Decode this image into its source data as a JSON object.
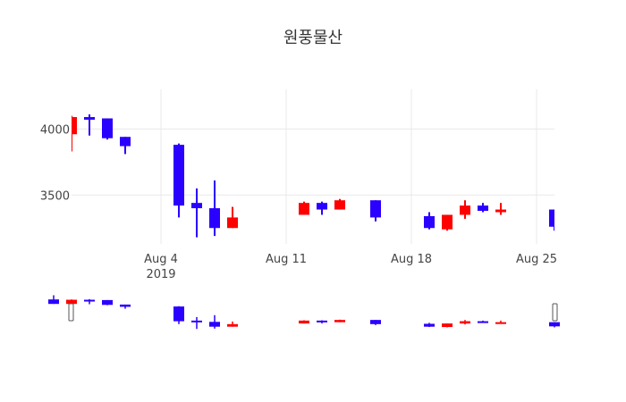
{
  "chart_data": {
    "type": "candlestick",
    "title": "원풍물산",
    "xlabel": "",
    "ylabel": "",
    "colors": {
      "increasing": "#ff0000",
      "decreasing": "#2a00ff",
      "grid": "#e8e8e8"
    },
    "x_range": [
      "2019-07-30",
      "2019-08-26"
    ],
    "y_range": [
      3130,
      4300
    ],
    "y_ticks": [
      4000,
      3500
    ],
    "x_ticks": [
      {
        "date": "2019-08-04",
        "label": "Aug 4",
        "sublabel": "2019"
      },
      {
        "date": "2019-08-11",
        "label": "Aug 11",
        "sublabel": ""
      },
      {
        "date": "2019-08-18",
        "label": "Aug 18",
        "sublabel": ""
      },
      {
        "date": "2019-08-25",
        "label": "Aug 25",
        "sublabel": ""
      }
    ],
    "candles": [
      {
        "date": "2019-07-29",
        "open": 4100,
        "high": 4230,
        "low": 3960,
        "close": 3960
      },
      {
        "date": "2019-07-30",
        "open": 3960,
        "high": 4100,
        "low": 3830,
        "close": 4090
      },
      {
        "date": "2019-07-31",
        "open": 4090,
        "high": 4110,
        "low": 3950,
        "close": 4070
      },
      {
        "date": "2019-08-01",
        "open": 4080,
        "high": 4080,
        "low": 3920,
        "close": 3930
      },
      {
        "date": "2019-08-02",
        "open": 3940,
        "high": 3940,
        "low": 3810,
        "close": 3870
      },
      {
        "date": "2019-08-05",
        "open": 3880,
        "high": 3890,
        "low": 3330,
        "close": 3420
      },
      {
        "date": "2019-08-06",
        "open": 3440,
        "high": 3550,
        "low": 3180,
        "close": 3400
      },
      {
        "date": "2019-08-07",
        "open": 3400,
        "high": 3610,
        "low": 3190,
        "close": 3250
      },
      {
        "date": "2019-08-08",
        "open": 3250,
        "high": 3410,
        "low": 3250,
        "close": 3330
      },
      {
        "date": "2019-08-12",
        "open": 3350,
        "high": 3450,
        "low": 3350,
        "close": 3440
      },
      {
        "date": "2019-08-13",
        "open": 3440,
        "high": 3450,
        "low": 3350,
        "close": 3390
      },
      {
        "date": "2019-08-14",
        "open": 3390,
        "high": 3470,
        "low": 3390,
        "close": 3460
      },
      {
        "date": "2019-08-16",
        "open": 3460,
        "high": 3460,
        "low": 3300,
        "close": 3330
      },
      {
        "date": "2019-08-19",
        "open": 3340,
        "high": 3370,
        "low": 3240,
        "close": 3250
      },
      {
        "date": "2019-08-20",
        "open": 3240,
        "high": 3350,
        "low": 3230,
        "close": 3350
      },
      {
        "date": "2019-08-21",
        "open": 3350,
        "high": 3460,
        "low": 3320,
        "close": 3420
      },
      {
        "date": "2019-08-22",
        "open": 3420,
        "high": 3440,
        "low": 3370,
        "close": 3380
      },
      {
        "date": "2019-08-23",
        "open": 3370,
        "high": 3440,
        "low": 3350,
        "close": 3390
      },
      {
        "date": "2019-08-26",
        "open": 3390,
        "high": 3390,
        "low": 3230,
        "close": 3260
      }
    ]
  }
}
